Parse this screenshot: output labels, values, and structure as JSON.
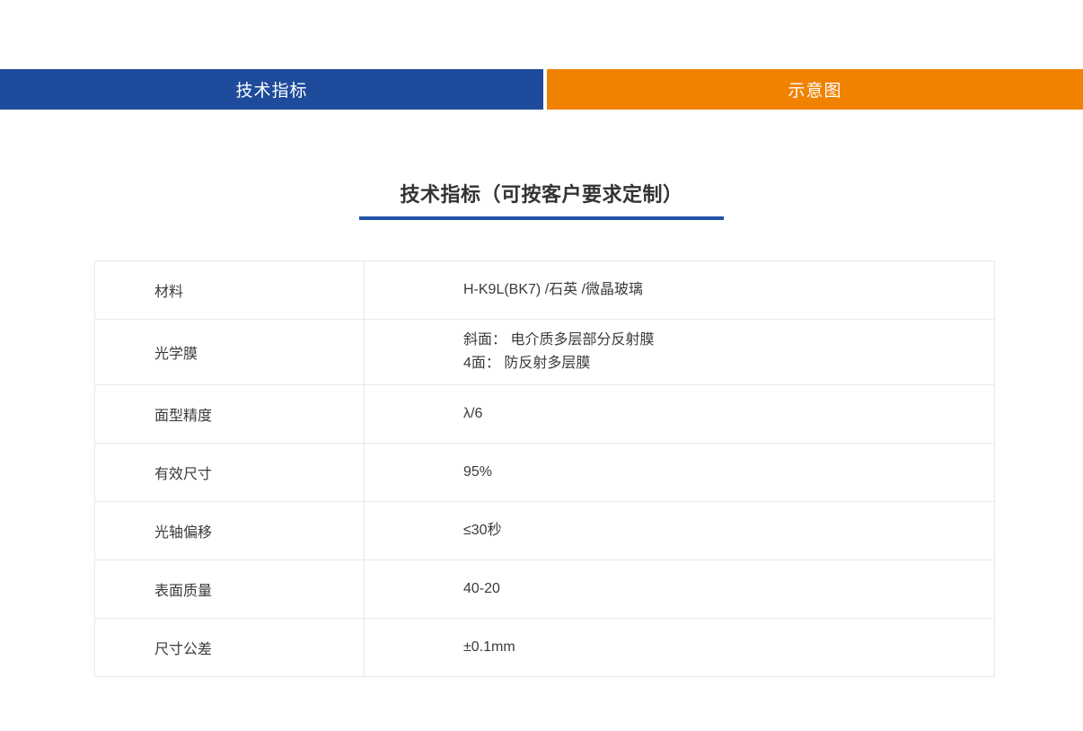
{
  "tabs": [
    {
      "label": "技术指标",
      "color": "#1e4b9b"
    },
    {
      "label": "示意图",
      "color": "#f08200"
    }
  ],
  "section": {
    "title": "技术指标（可按客户要求定制）",
    "underline_color": "#2353a6"
  },
  "table": {
    "rows": [
      {
        "label": "材料",
        "value": "H-K9L(BK7) /石英 /微晶玻璃"
      },
      {
        "label": "光学膜",
        "value": "斜面： 电介质多层部分反射膜\n4面： 防反射多层膜"
      },
      {
        "label": "面型精度",
        "value": "λ/6"
      },
      {
        "label": "有效尺寸",
        "value": "95%"
      },
      {
        "label": "光轴偏移",
        "value": "≤30秒"
      },
      {
        "label": "表面质量",
        "value": "40-20"
      },
      {
        "label": "尺寸公差",
        "value": "±0.1mm"
      }
    ]
  }
}
